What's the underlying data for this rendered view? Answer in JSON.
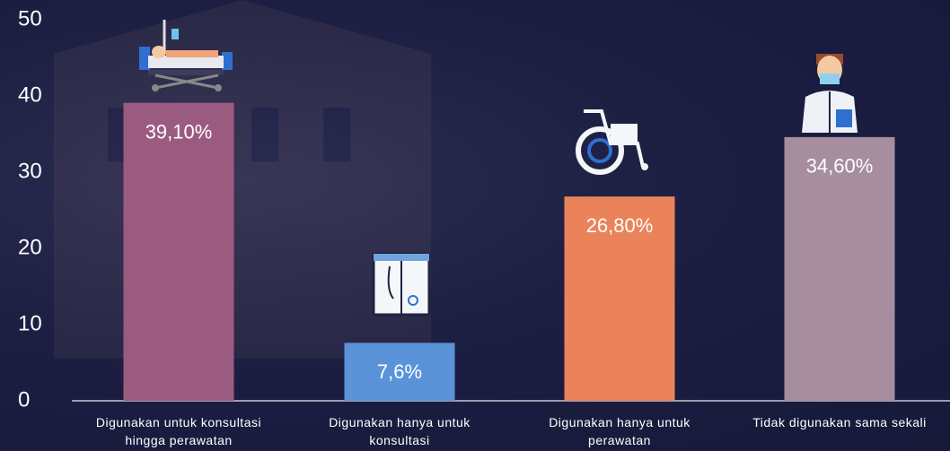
{
  "chart_data": {
    "type": "bar",
    "categories": [
      "Digunakan untuk konsultasi hingga perawatan",
      "Digunakan hanya untuk konsultasi",
      "Digunakan hanya untuk perawatan",
      "Tidak digunakan sama sekali"
    ],
    "values": [
      39.1,
      7.6,
      26.8,
      34.6
    ],
    "value_labels": [
      "39,10%",
      "7,6%",
      "26,80%",
      "34,60%"
    ],
    "colors": [
      "#9b5b80",
      "#5b93d9",
      "#eb835a",
      "#a78e9f"
    ],
    "ylim": [
      0,
      50
    ],
    "yticks": [
      0,
      10,
      20,
      30,
      40,
      50
    ],
    "grid": false
  }
}
